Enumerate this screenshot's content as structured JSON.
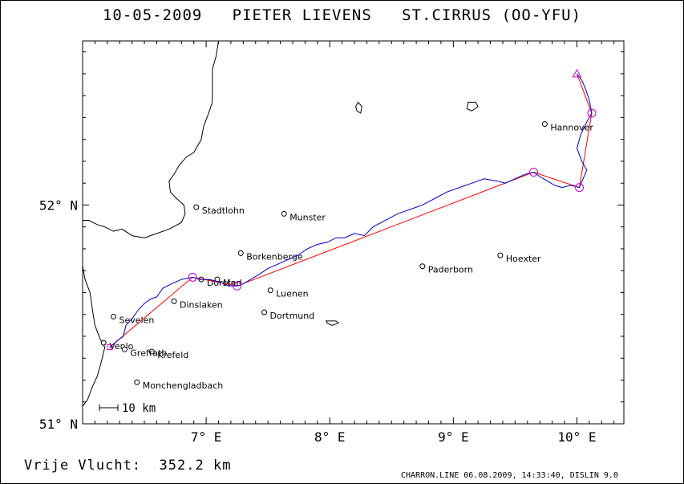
{
  "header": {
    "date": "10-05-2009",
    "pilot": "PIETER LIEVENS",
    "glider": "ST.CIRRUS (OO-YFU)"
  },
  "map": {
    "lon_range": [
      6.0,
      10.38
    ],
    "lat_range": [
      51.0,
      52.75
    ],
    "x_ticks": [
      {
        "value": 7,
        "label": "7° E"
      },
      {
        "value": 8,
        "label": "8° E"
      },
      {
        "value": 9,
        "label": "9° E"
      },
      {
        "value": 10,
        "label": "10° E"
      }
    ],
    "y_ticks": [
      {
        "value": 52,
        "label": "52° N"
      },
      {
        "value": 51,
        "label": "51° N"
      }
    ],
    "scale_label": "10 km",
    "colors": {
      "track": "#0000cc",
      "task": "#ff0000",
      "turnpoints": "#cc00cc",
      "map": "#000000"
    },
    "cities": [
      {
        "name": "Stadtlohn",
        "lon": 6.92,
        "lat": 51.99
      },
      {
        "name": "Munster",
        "lon": 7.63,
        "lat": 51.96
      },
      {
        "name": "Borkenberge",
        "lon": 7.28,
        "lat": 51.78
      },
      {
        "name": "Hannover",
        "lon": 9.74,
        "lat": 52.37
      },
      {
        "name": "Hoexter",
        "lon": 9.38,
        "lat": 51.77
      },
      {
        "name": "Dorsten",
        "lon": 6.96,
        "lat": 51.66
      },
      {
        "name": "Marl",
        "lon": 7.09,
        "lat": 51.66
      },
      {
        "name": "Dinslaken",
        "lon": 6.74,
        "lat": 51.56
      },
      {
        "name": "Luenen",
        "lon": 7.52,
        "lat": 51.61
      },
      {
        "name": "Paderborn",
        "lon": 8.75,
        "lat": 51.72
      },
      {
        "name": "Dortmund",
        "lon": 7.47,
        "lat": 51.51
      },
      {
        "name": "Sevelen",
        "lon": 6.25,
        "lat": 51.49
      },
      {
        "name": "Krefeld",
        "lon": 6.56,
        "lat": 51.33
      },
      {
        "name": "Venlo",
        "lon": 6.17,
        "lat": 51.37
      },
      {
        "name": "Grefrath",
        "lon": 6.34,
        "lat": 51.34
      },
      {
        "name": "Monchengladbach",
        "lon": 6.44,
        "lat": 51.19
      }
    ],
    "task_points": [
      {
        "lon": 6.22,
        "lat": 51.35,
        "kind": "start"
      },
      {
        "lon": 6.89,
        "lat": 51.67,
        "kind": "turnpoint"
      },
      {
        "lon": 7.25,
        "lat": 51.63,
        "kind": "turnpoint"
      },
      {
        "lon": 9.65,
        "lat": 52.15,
        "kind": "turnpoint"
      },
      {
        "lon": 10.02,
        "lat": 52.08,
        "kind": "turnpoint"
      },
      {
        "lon": 10.12,
        "lat": 52.42,
        "kind": "turnpoint"
      },
      {
        "lon": 10.0,
        "lat": 52.6,
        "kind": "finish"
      }
    ],
    "track": [
      [
        6.22,
        51.35
      ],
      [
        6.28,
        51.38
      ],
      [
        6.33,
        51.4
      ],
      [
        6.35,
        51.45
      ],
      [
        6.4,
        51.48
      ],
      [
        6.45,
        51.52
      ],
      [
        6.5,
        51.55
      ],
      [
        6.55,
        51.57
      ],
      [
        6.6,
        51.58
      ],
      [
        6.65,
        51.62
      ],
      [
        6.72,
        51.64
      ],
      [
        6.8,
        51.66
      ],
      [
        6.89,
        51.67
      ],
      [
        6.95,
        51.66
      ],
      [
        7.02,
        51.66
      ],
      [
        7.1,
        51.65
      ],
      [
        7.18,
        51.63
      ],
      [
        7.25,
        51.63
      ],
      [
        7.3,
        51.64
      ],
      [
        7.36,
        51.66
      ],
      [
        7.42,
        51.68
      ],
      [
        7.5,
        51.71
      ],
      [
        7.58,
        51.73
      ],
      [
        7.66,
        51.75
      ],
      [
        7.74,
        51.77
      ],
      [
        7.82,
        51.8
      ],
      [
        7.9,
        51.82
      ],
      [
        7.98,
        51.83
      ],
      [
        8.05,
        51.85
      ],
      [
        8.12,
        51.85
      ],
      [
        8.2,
        51.87
      ],
      [
        8.28,
        51.86
      ],
      [
        8.35,
        51.9
      ],
      [
        8.45,
        51.93
      ],
      [
        8.55,
        51.96
      ],
      [
        8.65,
        51.98
      ],
      [
        8.75,
        52.0
      ],
      [
        8.85,
        52.03
      ],
      [
        8.95,
        52.06
      ],
      [
        9.05,
        52.08
      ],
      [
        9.15,
        52.1
      ],
      [
        9.25,
        52.12
      ],
      [
        9.35,
        52.11
      ],
      [
        9.42,
        52.1
      ],
      [
        9.5,
        52.12
      ],
      [
        9.58,
        52.14
      ],
      [
        9.65,
        52.15
      ],
      [
        9.7,
        52.13
      ],
      [
        9.76,
        52.11
      ],
      [
        9.82,
        52.09
      ],
      [
        9.88,
        52.08
      ],
      [
        9.95,
        52.09
      ],
      [
        10.02,
        52.08
      ],
      [
        10.05,
        52.12
      ],
      [
        10.08,
        52.16
      ],
      [
        10.04,
        52.2
      ],
      [
        10.0,
        52.26
      ],
      [
        10.03,
        52.32
      ],
      [
        10.08,
        52.38
      ],
      [
        10.12,
        52.42
      ],
      [
        10.1,
        52.48
      ],
      [
        10.07,
        52.53
      ],
      [
        10.04,
        52.57
      ],
      [
        10.0,
        52.6
      ]
    ],
    "borders": [
      [
        [
          6.0,
          51.93
        ],
        [
          6.05,
          51.93
        ],
        [
          6.12,
          51.91
        ],
        [
          6.18,
          51.9
        ],
        [
          6.25,
          51.88
        ],
        [
          6.32,
          51.89
        ],
        [
          6.4,
          51.86
        ],
        [
          6.5,
          51.85
        ],
        [
          6.6,
          51.87
        ],
        [
          6.7,
          51.89
        ],
        [
          6.8,
          51.92
        ],
        [
          6.83,
          51.96
        ],
        [
          6.82,
          52.0
        ],
        [
          6.76,
          52.03
        ],
        [
          6.71,
          52.06
        ],
        [
          6.7,
          52.11
        ],
        [
          6.74,
          52.14
        ],
        [
          6.78,
          52.18
        ],
        [
          6.84,
          52.22
        ],
        [
          6.9,
          52.24
        ],
        [
          6.96,
          52.3
        ],
        [
          6.98,
          52.36
        ],
        [
          7.02,
          52.42
        ],
        [
          7.05,
          52.47
        ],
        [
          7.05,
          52.55
        ],
        [
          7.05,
          52.62
        ],
        [
          7.08,
          52.68
        ],
        [
          7.1,
          52.75
        ]
      ],
      [
        [
          6.0,
          51.72
        ],
        [
          6.02,
          51.66
        ],
        [
          6.06,
          51.6
        ],
        [
          6.08,
          51.52
        ],
        [
          6.1,
          51.45
        ],
        [
          6.14,
          51.39
        ],
        [
          6.18,
          51.35
        ],
        [
          6.15,
          51.28
        ],
        [
          6.12,
          51.22
        ],
        [
          6.08,
          51.17
        ],
        [
          6.04,
          51.11
        ],
        [
          6.0,
          51.08
        ]
      ]
    ],
    "lakes": [
      [
        [
          8.22,
          52.43
        ],
        [
          8.25,
          52.42
        ],
        [
          8.26,
          52.45
        ],
        [
          8.23,
          52.47
        ],
        [
          8.21,
          52.45
        ]
      ],
      [
        [
          9.11,
          52.44
        ],
        [
          9.15,
          52.43
        ],
        [
          9.2,
          52.45
        ],
        [
          9.18,
          52.47
        ],
        [
          9.12,
          52.47
        ]
      ],
      [
        [
          7.98,
          51.46
        ],
        [
          8.02,
          51.45
        ],
        [
          8.07,
          51.46
        ],
        [
          8.05,
          51.47
        ],
        [
          8.01,
          51.47
        ],
        [
          7.97,
          51.47
        ]
      ]
    ]
  },
  "distance": {
    "label": "Vrije Vlucht:",
    "value": "352.2 km"
  },
  "footer": {
    "text": "CHARRON.LINE 06.08.2009, 14:33:40, DISLIN 9.0"
  }
}
